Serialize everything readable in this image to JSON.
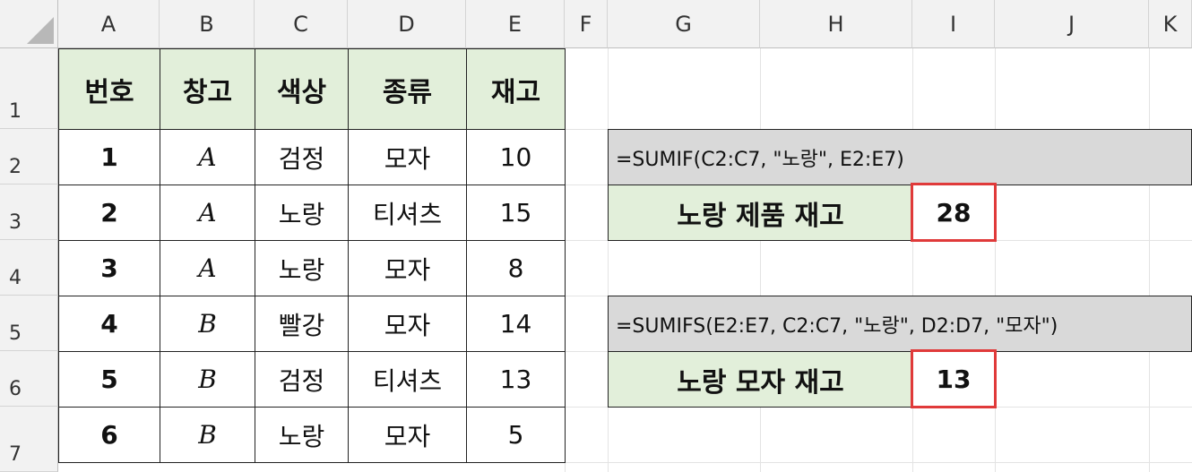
{
  "columns": [
    "A",
    "B",
    "C",
    "D",
    "E",
    "F",
    "G",
    "H",
    "I",
    "J",
    "K"
  ],
  "rows": [
    "1",
    "2",
    "3",
    "4",
    "5",
    "6",
    "7"
  ],
  "table": {
    "headers": [
      "번호",
      "창고",
      "색상",
      "종류",
      "재고"
    ],
    "data": [
      [
        "1",
        "A",
        "검정",
        "모자",
        "10"
      ],
      [
        "2",
        "A",
        "노랑",
        "티셔츠",
        "15"
      ],
      [
        "3",
        "A",
        "노랑",
        "모자",
        "8"
      ],
      [
        "4",
        "B",
        "빨강",
        "모자",
        "14"
      ],
      [
        "5",
        "B",
        "검정",
        "티셔츠",
        "13"
      ],
      [
        "6",
        "B",
        "노랑",
        "모자",
        "5"
      ]
    ]
  },
  "sumif": {
    "formula": "=SUMIF(C2:C7, \"노랑\", E2:E7)",
    "label": "노랑 제품 재고",
    "result": "28"
  },
  "sumifs": {
    "formula": "=SUMIFS(E2:E7, C2:C7, \"노랑\", D2:D7, \"모자\")",
    "label": "노랑 모자 재고",
    "result": "13"
  },
  "colors": {
    "header_fill": "#e2efda",
    "formula_fill": "#d9d9d9",
    "result_border": "#e03a3a"
  }
}
